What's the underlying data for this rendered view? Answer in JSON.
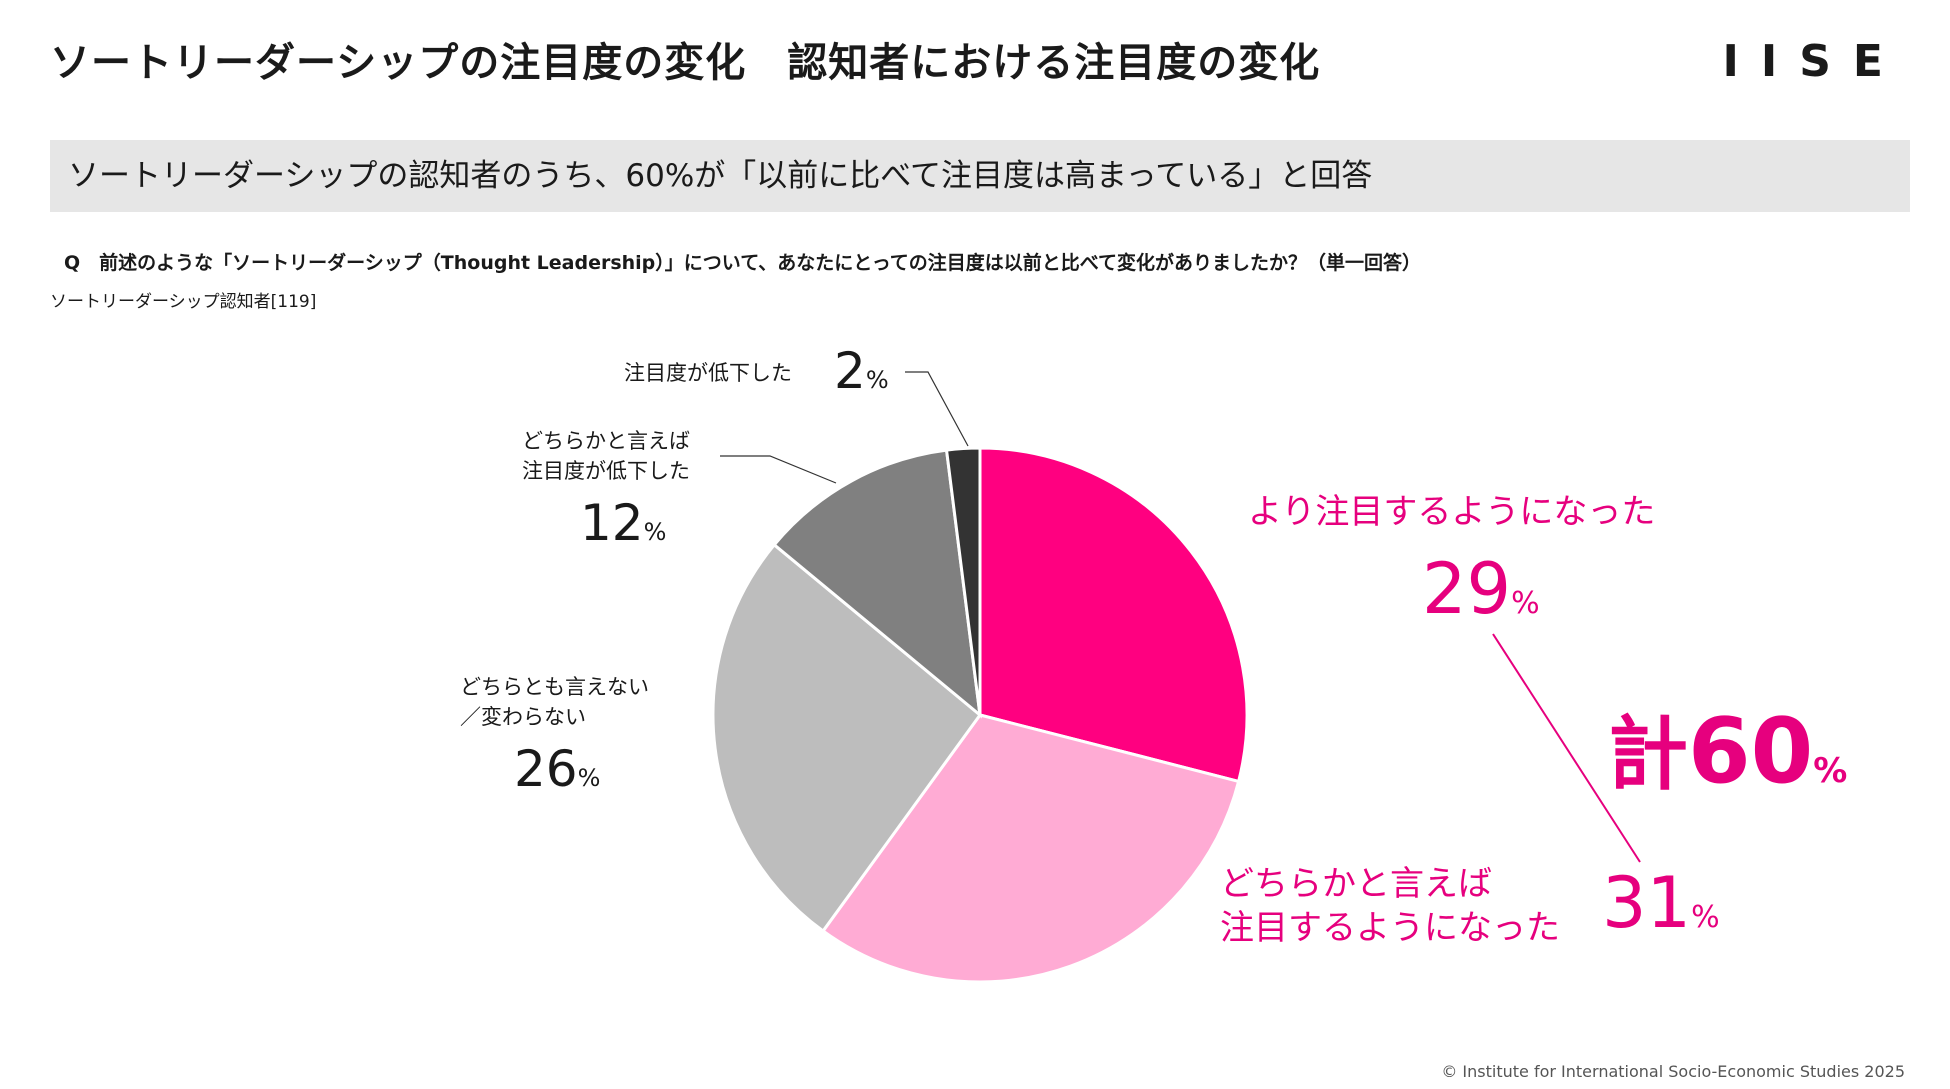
{
  "header": {
    "title": "ソートリーダーシップの注目度の変化　認知者における注目度の変化",
    "logo": "IISE"
  },
  "banner": {
    "text": "ソートリーダーシップの認知者のうち、60%が「以前に比べて注目度は高まっている」と回答"
  },
  "question": "Q　前述のような「ソートリーダーシップ（Thought Leadership）」について、あなたにとっての注目度は以前と比べて変化がありましたか？（単一回答）",
  "base_note": "ソートリーダーシップ認知者[119]",
  "chart_data": {
    "type": "pie",
    "slices": [
      {
        "label": "より注目するようになった",
        "value": 29,
        "color": "#ff0080"
      },
      {
        "label": "どちらかと言えば注目するようになった",
        "value": 31,
        "color": "#ffabd4"
      },
      {
        "label": "どちらとも言えない／変わらない",
        "value": 26,
        "color": "#bdbdbd"
      },
      {
        "label": "どちらかと言えば注目度が低下した",
        "value": 12,
        "color": "#808080"
      },
      {
        "label": "注目度が低下した",
        "value": 2,
        "color": "#333333"
      }
    ],
    "total": {
      "prefix": "計",
      "value": "60",
      "unit": "%"
    }
  },
  "labels": {
    "s0_line1": "より注目するようになった",
    "s0_num": "29",
    "s1_line1": "どちらかと言えば",
    "s1_line2": "注目するようになった",
    "s1_num": "31",
    "s2_line1": "どちらとも言えない",
    "s2_line2": "／変わらない",
    "s2_num": "26",
    "s3_line1": "どちらかと言えば",
    "s3_line2": "注目度が低下した",
    "s3_num": "12",
    "s4_line1": "注目度が低下した",
    "s4_num": "2",
    "pct": "%"
  },
  "footer": "© Institute for International Socio-Economic Studies 2025"
}
